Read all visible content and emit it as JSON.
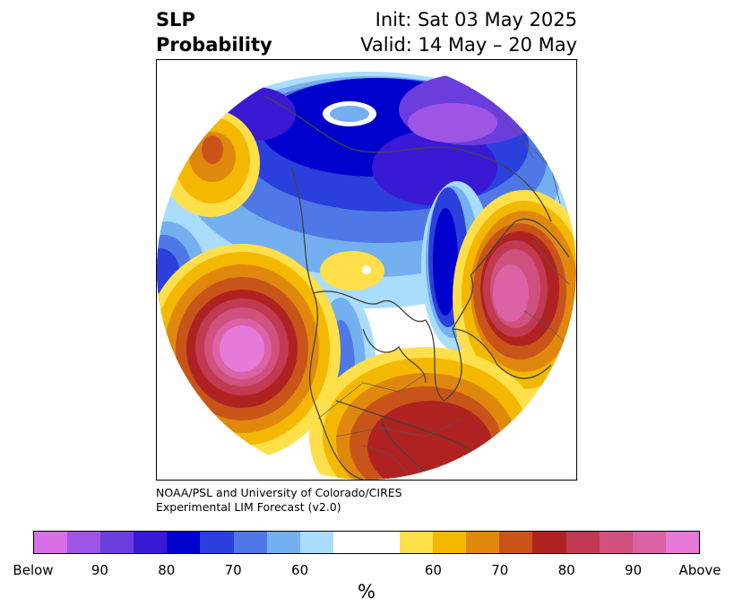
{
  "title": {
    "left_line1": "SLP",
    "left_line2": "Probability",
    "right_line1": "Init: Sat 03 May 2025",
    "right_line2": "Valid: 14 May – 20 May"
  },
  "credit": {
    "line1": "NOAA/PSL and University of Colorado/CIRES",
    "line2": "Experimental LIM Forecast (v2.0)"
  },
  "colorbar": {
    "unit_label": "%",
    "colors": [
      "#d86fe6",
      "#9f55e3",
      "#6b3ddc",
      "#3a19d4",
      "#0000cc",
      "#2a3fdc",
      "#4f78e6",
      "#74aff0",
      "#aadcfc",
      "#ffffff",
      "#ffffff",
      "#ffe04a",
      "#f5b800",
      "#e0880e",
      "#c8541a",
      "#b02222",
      "#c23a52",
      "#d0507e",
      "#dc62a6",
      "#e67ad8"
    ],
    "ticks": [
      {
        "label": "Below"
      },
      {
        "label": "90"
      },
      {
        "label": "80"
      },
      {
        "label": "70"
      },
      {
        "label": "60"
      },
      {
        "label": "60"
      },
      {
        "label": "70"
      },
      {
        "label": "80"
      },
      {
        "label": "90"
      },
      {
        "label": "Above"
      }
    ]
  },
  "map": {
    "projection": "north-polar-stereographic",
    "layers": [
      "coastlines",
      "country-borders",
      "state-borders",
      "probability-contours"
    ]
  }
}
